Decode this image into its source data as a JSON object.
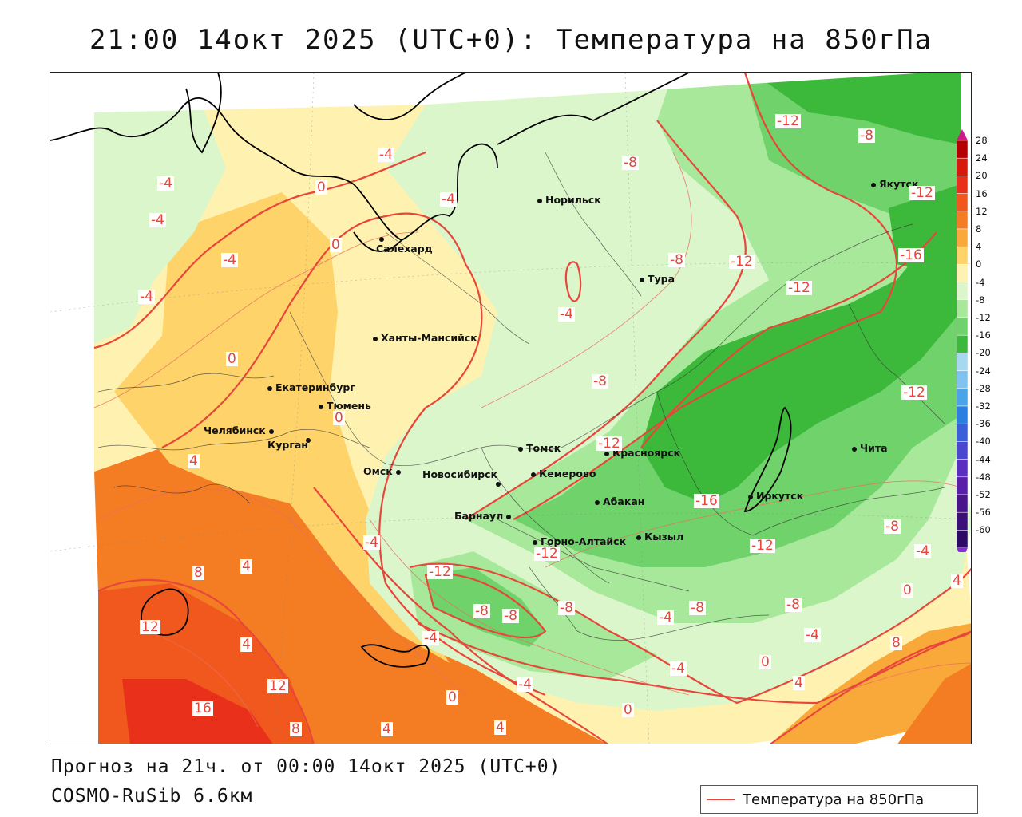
{
  "title": "21:00 14окт 2025 (UTC+0): Температура на 850гПа",
  "footer": {
    "forecast": "Прогноз на 21ч. от 00:00 14окт 2025 (UTC+0)",
    "model": "COSMO-RuSib 6.6км"
  },
  "legend": {
    "line_label": "Температура на 850гПа",
    "line_color": "#e8463a"
  },
  "colorbar": {
    "labels": [
      "28",
      "24",
      "20",
      "16",
      "12",
      "8",
      "4",
      "0",
      "-4",
      "-8",
      "-12",
      "-16",
      "-20",
      "-24",
      "-28",
      "-32",
      "-36",
      "-40",
      "-44",
      "-48",
      "-52",
      "-56",
      "-60"
    ],
    "colors": [
      "#b40000",
      "#d7190d",
      "#e8301a",
      "#f0581e",
      "#f47c22",
      "#f9a93a",
      "#fdd36a",
      "#fff2b0",
      "#dcf6cc",
      "#a7e89a",
      "#6fd26a",
      "#3cb83a",
      "#a6d8ef",
      "#7fc3ee",
      "#4aa4e8",
      "#2b7fe0",
      "#3a5fd8",
      "#4b46cf",
      "#5a2fbf",
      "#5a1fa8",
      "#4a158c",
      "#3d0f78",
      "#2d0a64"
    ],
    "top_arrow_color": "#d01a8c",
    "bottom_arrow_color": "#8a2be2"
  },
  "cities": [
    {
      "name": "Норильск",
      "id": "norilsk"
    },
    {
      "name": "Салехард",
      "id": "salekhard"
    },
    {
      "name": "Тура",
      "id": "tura"
    },
    {
      "name": "Якутск",
      "id": "yakutsk"
    },
    {
      "name": "Ханты-Мансийск",
      "id": "khanty"
    },
    {
      "name": "Екатеринбург",
      "id": "ekb"
    },
    {
      "name": "Тюмень",
      "id": "tyumen"
    },
    {
      "name": "Челябинск",
      "id": "chelyabinsk"
    },
    {
      "name": "Курган",
      "id": "kurgan"
    },
    {
      "name": "Омск",
      "id": "omsk"
    },
    {
      "name": "Новосибирск",
      "id": "novosibirsk"
    },
    {
      "name": "Томск",
      "id": "tomsk"
    },
    {
      "name": "Кемерово",
      "id": "kemerovo"
    },
    {
      "name": "Красноярск",
      "id": "krasnoyarsk"
    },
    {
      "name": "Абакан",
      "id": "abakan"
    },
    {
      "name": "Барнаул",
      "id": "barnaul"
    },
    {
      "name": "Горно-Алтайск",
      "id": "gorno"
    },
    {
      "name": "Кызыл",
      "id": "kyzyl"
    },
    {
      "name": "Иркутск",
      "id": "irkutsk"
    },
    {
      "name": "Чита",
      "id": "chita"
    }
  ],
  "contour_labels": [
    "-12",
    "-8",
    "-4",
    "-4",
    "-4",
    "0",
    "-4",
    "-4",
    "0",
    "-8",
    "-8",
    "-12",
    "-16",
    "-12",
    "-12",
    "-4",
    "-4",
    "-8",
    "-12",
    "0",
    "0",
    "4",
    "-12",
    "-16",
    "-12",
    "-8",
    "-4",
    "-4",
    "-12",
    "-8",
    "-8",
    "-8",
    "-4",
    "-8",
    "-4",
    "-8",
    "0",
    "-4",
    "4",
    "0",
    "4",
    "8",
    "8",
    "4",
    "12",
    "12",
    "16",
    "8",
    "4",
    "4",
    "-4",
    "0",
    "0",
    "-4",
    "4",
    "-12"
  ],
  "colors": {
    "contour": "#e8463a",
    "thin_contour": "#e87060",
    "coast": "#000000",
    "border": "#222222"
  }
}
